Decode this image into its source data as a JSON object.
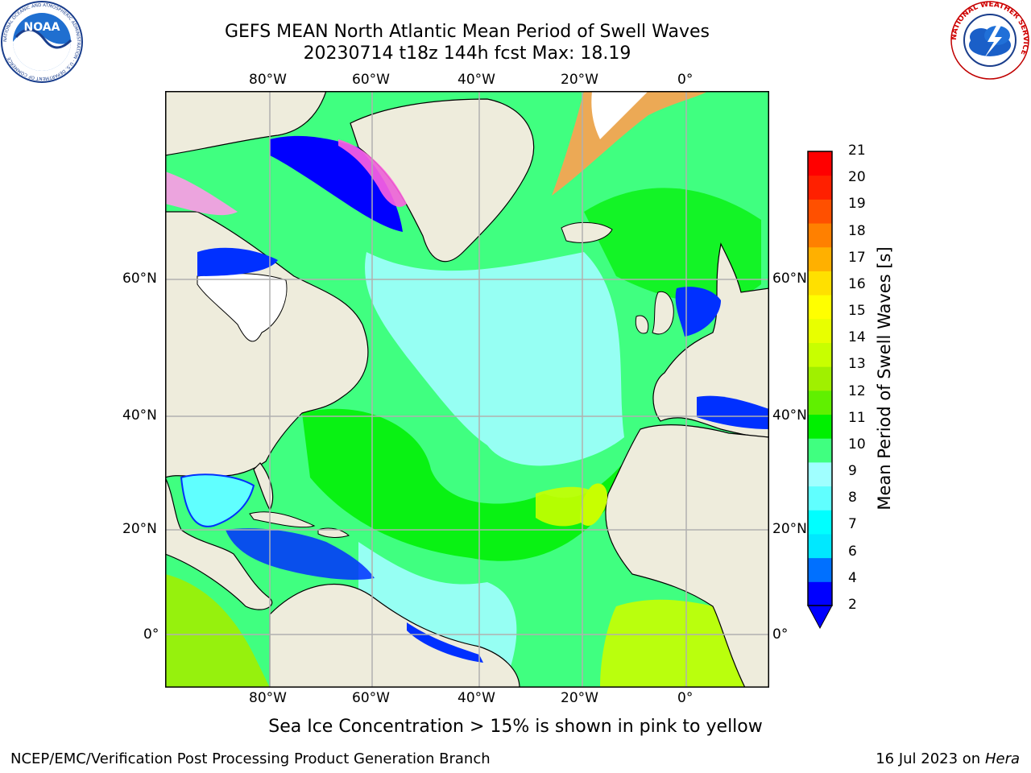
{
  "header": {
    "title_line1": "GEFS MEAN North Atlantic Mean Period of Swell Waves",
    "title_line2": "20230714 t18z 144h fcst   Max: 18.19"
  },
  "logos": {
    "noaa_text": "NOAA",
    "noaa_ring_text": "NATIONAL OCEANIC AND ATMOSPHERIC ADMINISTRATION · U.S. DEPARTMENT OF COMMERCE",
    "nws_ring_text": "NATIONAL WEATHER SERVICE"
  },
  "map": {
    "lon_labels": [
      "80°W",
      "60°W",
      "40°W",
      "20°W",
      "0°"
    ],
    "lat_labels": [
      "60°N",
      "40°N",
      "20°N",
      "0°"
    ],
    "lon_range": [
      -100,
      15
    ],
    "lat_range": [
      -8,
      80
    ],
    "gridlines": true,
    "colors": {
      "land": "#eeecdc",
      "ice": "#ffffff",
      "coast": "#000000",
      "grid": "#b0b0b0"
    }
  },
  "colorbar": {
    "label": "Mean Period of Swell Waves [s]",
    "ticks": [
      "2",
      "4",
      "6",
      "7",
      "8",
      "9",
      "10",
      "11",
      "12",
      "13",
      "14",
      "15",
      "16",
      "17",
      "18",
      "19",
      "20",
      "21"
    ],
    "colors": [
      "#0000ff",
      "#0070ff",
      "#00e8ff",
      "#00ffff",
      "#60ffff",
      "#a0ffff",
      "#40ff80",
      "#00f000",
      "#60f000",
      "#a0f000",
      "#c8ff00",
      "#e8ff00",
      "#ffff00",
      "#ffe000",
      "#ffb000",
      "#ff8000",
      "#ff5000",
      "#ff2000",
      "#ff0000"
    ],
    "extend_min_color": "#0000ff"
  },
  "footer": {
    "note": "Sea Ice Concentration > 15% is shown in pink to yellow",
    "left": "NCEP/EMC/Verification Post Processing Product Generation Branch",
    "right_date": "16 Jul 2023 on",
    "right_host": "Hera"
  }
}
